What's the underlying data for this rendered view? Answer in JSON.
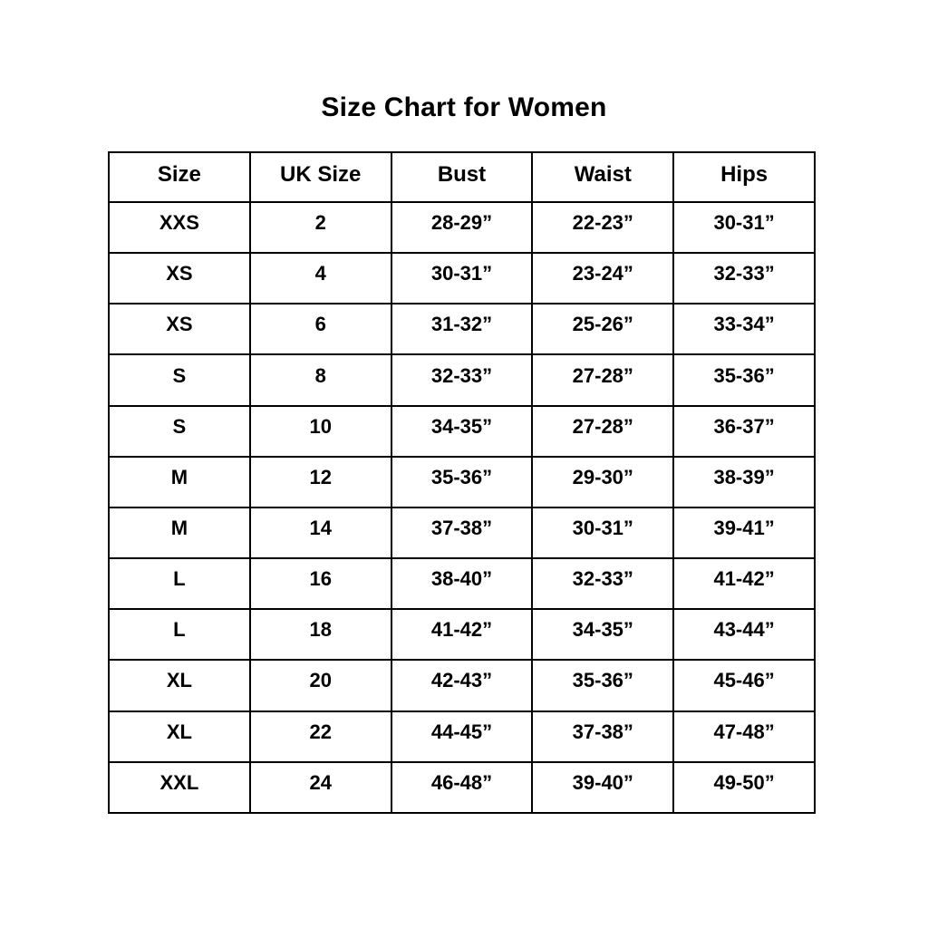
{
  "title": "Size Chart for Women",
  "table": {
    "headers": [
      "Size",
      "UK Size",
      "Bust",
      "Waist",
      "Hips"
    ],
    "rows": [
      [
        "XXS",
        "2",
        "28-29”",
        "22-23”",
        "30-31”"
      ],
      [
        "XS",
        "4",
        "30-31”",
        "23-24”",
        "32-33”"
      ],
      [
        "XS",
        "6",
        "31-32”",
        "25-26”",
        "33-34”"
      ],
      [
        "S",
        "8",
        "32-33”",
        "27-28”",
        "35-36”"
      ],
      [
        "S",
        "10",
        "34-35”",
        "27-28”",
        "36-37”"
      ],
      [
        "M",
        "12",
        "35-36”",
        "29-30”",
        "38-39”"
      ],
      [
        "M",
        "14",
        "37-38”",
        "30-31”",
        "39-41”"
      ],
      [
        "L",
        "16",
        "38-40”",
        "32-33”",
        "41-42”"
      ],
      [
        "L",
        "18",
        "41-42”",
        "34-35”",
        "43-44”"
      ],
      [
        "XL",
        "20",
        "42-43”",
        "35-36”",
        "45-46”"
      ],
      [
        "XL",
        "22",
        "44-45”",
        "37-38”",
        "47-48”"
      ],
      [
        "XXL",
        "24",
        "46-48”",
        "39-40”",
        "49-50”"
      ]
    ]
  },
  "chart_data": {
    "type": "table",
    "title": "Size Chart for Women",
    "columns": [
      "Size",
      "UK Size",
      "Bust",
      "Waist",
      "Hips"
    ],
    "rows": [
      {
        "size": "XXS",
        "uk_size": 2,
        "bust": "28-29”",
        "waist": "22-23”",
        "hips": "30-31”"
      },
      {
        "size": "XS",
        "uk_size": 4,
        "bust": "30-31”",
        "waist": "23-24”",
        "hips": "32-33”"
      },
      {
        "size": "XS",
        "uk_size": 6,
        "bust": "31-32”",
        "waist": "25-26”",
        "hips": "33-34”"
      },
      {
        "size": "S",
        "uk_size": 8,
        "bust": "32-33”",
        "waist": "27-28”",
        "hips": "35-36”"
      },
      {
        "size": "S",
        "uk_size": 10,
        "bust": "34-35”",
        "waist": "27-28”",
        "hips": "36-37”"
      },
      {
        "size": "M",
        "uk_size": 12,
        "bust": "35-36”",
        "waist": "29-30”",
        "hips": "38-39”"
      },
      {
        "size": "M",
        "uk_size": 14,
        "bust": "37-38”",
        "waist": "30-31”",
        "hips": "39-41”"
      },
      {
        "size": "L",
        "uk_size": 16,
        "bust": "38-40”",
        "waist": "32-33”",
        "hips": "41-42”"
      },
      {
        "size": "L",
        "uk_size": 18,
        "bust": "41-42”",
        "waist": "34-35”",
        "hips": "43-44”"
      },
      {
        "size": "XL",
        "uk_size": 20,
        "bust": "42-43”",
        "waist": "35-36”",
        "hips": "45-46”"
      },
      {
        "size": "XL",
        "uk_size": 22,
        "bust": "44-45”",
        "waist": "37-38”",
        "hips": "47-48”"
      },
      {
        "size": "XXL",
        "uk_size": 24,
        "bust": "46-48”",
        "waist": "39-40”",
        "hips": "49-50”"
      }
    ],
    "layout": {
      "border_color": "#000000",
      "text_color": "#000000",
      "background": "#ffffff",
      "all_text_bold": true
    }
  }
}
